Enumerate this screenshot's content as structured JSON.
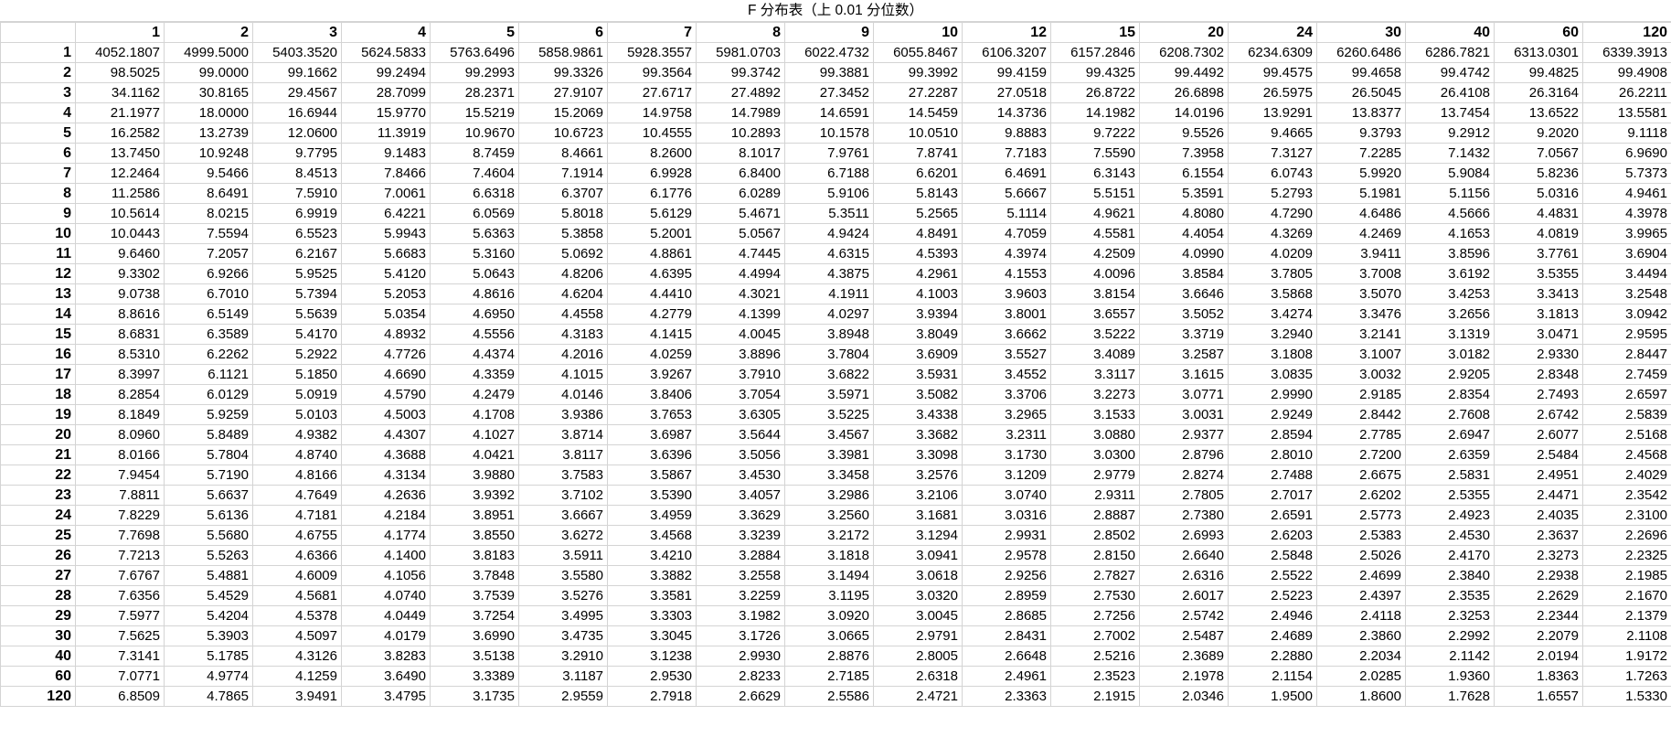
{
  "title": "F 分布表（上 0.01 分位数）",
  "columns": [
    "1",
    "2",
    "3",
    "4",
    "5",
    "6",
    "7",
    "8",
    "9",
    "10",
    "12",
    "15",
    "20",
    "24",
    "30",
    "40",
    "60",
    "120"
  ],
  "rows": [
    {
      "df": "1",
      "values": [
        "4052.1807",
        "4999.5000",
        "5403.3520",
        "5624.5833",
        "5763.6496",
        "5858.9861",
        "5928.3557",
        "5981.0703",
        "6022.4732",
        "6055.8467",
        "6106.3207",
        "6157.2846",
        "6208.7302",
        "6234.6309",
        "6260.6486",
        "6286.7821",
        "6313.0301",
        "6339.3913"
      ]
    },
    {
      "df": "2",
      "values": [
        "98.5025",
        "99.0000",
        "99.1662",
        "99.2494",
        "99.2993",
        "99.3326",
        "99.3564",
        "99.3742",
        "99.3881",
        "99.3992",
        "99.4159",
        "99.4325",
        "99.4492",
        "99.4575",
        "99.4658",
        "99.4742",
        "99.4825",
        "99.4908"
      ]
    },
    {
      "df": "3",
      "values": [
        "34.1162",
        "30.8165",
        "29.4567",
        "28.7099",
        "28.2371",
        "27.9107",
        "27.6717",
        "27.4892",
        "27.3452",
        "27.2287",
        "27.0518",
        "26.8722",
        "26.6898",
        "26.5975",
        "26.5045",
        "26.4108",
        "26.3164",
        "26.2211"
      ]
    },
    {
      "df": "4",
      "values": [
        "21.1977",
        "18.0000",
        "16.6944",
        "15.9770",
        "15.5219",
        "15.2069",
        "14.9758",
        "14.7989",
        "14.6591",
        "14.5459",
        "14.3736",
        "14.1982",
        "14.0196",
        "13.9291",
        "13.8377",
        "13.7454",
        "13.6522",
        "13.5581"
      ]
    },
    {
      "df": "5",
      "values": [
        "16.2582",
        "13.2739",
        "12.0600",
        "11.3919",
        "10.9670",
        "10.6723",
        "10.4555",
        "10.2893",
        "10.1578",
        "10.0510",
        "9.8883",
        "9.7222",
        "9.5526",
        "9.4665",
        "9.3793",
        "9.2912",
        "9.2020",
        "9.1118"
      ]
    },
    {
      "df": "6",
      "values": [
        "13.7450",
        "10.9248",
        "9.7795",
        "9.1483",
        "8.7459",
        "8.4661",
        "8.2600",
        "8.1017",
        "7.9761",
        "7.8741",
        "7.7183",
        "7.5590",
        "7.3958",
        "7.3127",
        "7.2285",
        "7.1432",
        "7.0567",
        "6.9690"
      ]
    },
    {
      "df": "7",
      "values": [
        "12.2464",
        "9.5466",
        "8.4513",
        "7.8466",
        "7.4604",
        "7.1914",
        "6.9928",
        "6.8400",
        "6.7188",
        "6.6201",
        "6.4691",
        "6.3143",
        "6.1554",
        "6.0743",
        "5.9920",
        "5.9084",
        "5.8236",
        "5.7373"
      ]
    },
    {
      "df": "8",
      "values": [
        "11.2586",
        "8.6491",
        "7.5910",
        "7.0061",
        "6.6318",
        "6.3707",
        "6.1776",
        "6.0289",
        "5.9106",
        "5.8143",
        "5.6667",
        "5.5151",
        "5.3591",
        "5.2793",
        "5.1981",
        "5.1156",
        "5.0316",
        "4.9461"
      ]
    },
    {
      "df": "9",
      "values": [
        "10.5614",
        "8.0215",
        "6.9919",
        "6.4221",
        "6.0569",
        "5.8018",
        "5.6129",
        "5.4671",
        "5.3511",
        "5.2565",
        "5.1114",
        "4.9621",
        "4.8080",
        "4.7290",
        "4.6486",
        "4.5666",
        "4.4831",
        "4.3978"
      ]
    },
    {
      "df": "10",
      "values": [
        "10.0443",
        "7.5594",
        "6.5523",
        "5.9943",
        "5.6363",
        "5.3858",
        "5.2001",
        "5.0567",
        "4.9424",
        "4.8491",
        "4.7059",
        "4.5581",
        "4.4054",
        "4.3269",
        "4.2469",
        "4.1653",
        "4.0819",
        "3.9965"
      ]
    },
    {
      "df": "11",
      "values": [
        "9.6460",
        "7.2057",
        "6.2167",
        "5.6683",
        "5.3160",
        "5.0692",
        "4.8861",
        "4.7445",
        "4.6315",
        "4.5393",
        "4.3974",
        "4.2509",
        "4.0990",
        "4.0209",
        "3.9411",
        "3.8596",
        "3.7761",
        "3.6904"
      ]
    },
    {
      "df": "12",
      "values": [
        "9.3302",
        "6.9266",
        "5.9525",
        "5.4120",
        "5.0643",
        "4.8206",
        "4.6395",
        "4.4994",
        "4.3875",
        "4.2961",
        "4.1553",
        "4.0096",
        "3.8584",
        "3.7805",
        "3.7008",
        "3.6192",
        "3.5355",
        "3.4494"
      ]
    },
    {
      "df": "13",
      "values": [
        "9.0738",
        "6.7010",
        "5.7394",
        "5.2053",
        "4.8616",
        "4.6204",
        "4.4410",
        "4.3021",
        "4.1911",
        "4.1003",
        "3.9603",
        "3.8154",
        "3.6646",
        "3.5868",
        "3.5070",
        "3.4253",
        "3.3413",
        "3.2548"
      ]
    },
    {
      "df": "14",
      "values": [
        "8.8616",
        "6.5149",
        "5.5639",
        "5.0354",
        "4.6950",
        "4.4558",
        "4.2779",
        "4.1399",
        "4.0297",
        "3.9394",
        "3.8001",
        "3.6557",
        "3.5052",
        "3.4274",
        "3.3476",
        "3.2656",
        "3.1813",
        "3.0942"
      ]
    },
    {
      "df": "15",
      "values": [
        "8.6831",
        "6.3589",
        "5.4170",
        "4.8932",
        "4.5556",
        "4.3183",
        "4.1415",
        "4.0045",
        "3.8948",
        "3.8049",
        "3.6662",
        "3.5222",
        "3.3719",
        "3.2940",
        "3.2141",
        "3.1319",
        "3.0471",
        "2.9595"
      ]
    },
    {
      "df": "16",
      "values": [
        "8.5310",
        "6.2262",
        "5.2922",
        "4.7726",
        "4.4374",
        "4.2016",
        "4.0259",
        "3.8896",
        "3.7804",
        "3.6909",
        "3.5527",
        "3.4089",
        "3.2587",
        "3.1808",
        "3.1007",
        "3.0182",
        "2.9330",
        "2.8447"
      ]
    },
    {
      "df": "17",
      "values": [
        "8.3997",
        "6.1121",
        "5.1850",
        "4.6690",
        "4.3359",
        "4.1015",
        "3.9267",
        "3.7910",
        "3.6822",
        "3.5931",
        "3.4552",
        "3.3117",
        "3.1615",
        "3.0835",
        "3.0032",
        "2.9205",
        "2.8348",
        "2.7459"
      ]
    },
    {
      "df": "18",
      "values": [
        "8.2854",
        "6.0129",
        "5.0919",
        "4.5790",
        "4.2479",
        "4.0146",
        "3.8406",
        "3.7054",
        "3.5971",
        "3.5082",
        "3.3706",
        "3.2273",
        "3.0771",
        "2.9990",
        "2.9185",
        "2.8354",
        "2.7493",
        "2.6597"
      ]
    },
    {
      "df": "19",
      "values": [
        "8.1849",
        "5.9259",
        "5.0103",
        "4.5003",
        "4.1708",
        "3.9386",
        "3.7653",
        "3.6305",
        "3.5225",
        "3.4338",
        "3.2965",
        "3.1533",
        "3.0031",
        "2.9249",
        "2.8442",
        "2.7608",
        "2.6742",
        "2.5839"
      ]
    },
    {
      "df": "20",
      "values": [
        "8.0960",
        "5.8489",
        "4.9382",
        "4.4307",
        "4.1027",
        "3.8714",
        "3.6987",
        "3.5644",
        "3.4567",
        "3.3682",
        "3.2311",
        "3.0880",
        "2.9377",
        "2.8594",
        "2.7785",
        "2.6947",
        "2.6077",
        "2.5168"
      ]
    },
    {
      "df": "21",
      "values": [
        "8.0166",
        "5.7804",
        "4.8740",
        "4.3688",
        "4.0421",
        "3.8117",
        "3.6396",
        "3.5056",
        "3.3981",
        "3.3098",
        "3.1730",
        "3.0300",
        "2.8796",
        "2.8010",
        "2.7200",
        "2.6359",
        "2.5484",
        "2.4568"
      ]
    },
    {
      "df": "22",
      "values": [
        "7.9454",
        "5.7190",
        "4.8166",
        "4.3134",
        "3.9880",
        "3.7583",
        "3.5867",
        "3.4530",
        "3.3458",
        "3.2576",
        "3.1209",
        "2.9779",
        "2.8274",
        "2.7488",
        "2.6675",
        "2.5831",
        "2.4951",
        "2.4029"
      ]
    },
    {
      "df": "23",
      "values": [
        "7.8811",
        "5.6637",
        "4.7649",
        "4.2636",
        "3.9392",
        "3.7102",
        "3.5390",
        "3.4057",
        "3.2986",
        "3.2106",
        "3.0740",
        "2.9311",
        "2.7805",
        "2.7017",
        "2.6202",
        "2.5355",
        "2.4471",
        "2.3542"
      ]
    },
    {
      "df": "24",
      "values": [
        "7.8229",
        "5.6136",
        "4.7181",
        "4.2184",
        "3.8951",
        "3.6667",
        "3.4959",
        "3.3629",
        "3.2560",
        "3.1681",
        "3.0316",
        "2.8887",
        "2.7380",
        "2.6591",
        "2.5773",
        "2.4923",
        "2.4035",
        "2.3100"
      ]
    },
    {
      "df": "25",
      "values": [
        "7.7698",
        "5.5680",
        "4.6755",
        "4.1774",
        "3.8550",
        "3.6272",
        "3.4568",
        "3.3239",
        "3.2172",
        "3.1294",
        "2.9931",
        "2.8502",
        "2.6993",
        "2.6203",
        "2.5383",
        "2.4530",
        "2.3637",
        "2.2696"
      ]
    },
    {
      "df": "26",
      "values": [
        "7.7213",
        "5.5263",
        "4.6366",
        "4.1400",
        "3.8183",
        "3.5911",
        "3.4210",
        "3.2884",
        "3.1818",
        "3.0941",
        "2.9578",
        "2.8150",
        "2.6640",
        "2.5848",
        "2.5026",
        "2.4170",
        "2.3273",
        "2.2325"
      ]
    },
    {
      "df": "27",
      "values": [
        "7.6767",
        "5.4881",
        "4.6009",
        "4.1056",
        "3.7848",
        "3.5580",
        "3.3882",
        "3.2558",
        "3.1494",
        "3.0618",
        "2.9256",
        "2.7827",
        "2.6316",
        "2.5522",
        "2.4699",
        "2.3840",
        "2.2938",
        "2.1985"
      ]
    },
    {
      "df": "28",
      "values": [
        "7.6356",
        "5.4529",
        "4.5681",
        "4.0740",
        "3.7539",
        "3.5276",
        "3.3581",
        "3.2259",
        "3.1195",
        "3.0320",
        "2.8959",
        "2.7530",
        "2.6017",
        "2.5223",
        "2.4397",
        "2.3535",
        "2.2629",
        "2.1670"
      ]
    },
    {
      "df": "29",
      "values": [
        "7.5977",
        "5.4204",
        "4.5378",
        "4.0449",
        "3.7254",
        "3.4995",
        "3.3303",
        "3.1982",
        "3.0920",
        "3.0045",
        "2.8685",
        "2.7256",
        "2.5742",
        "2.4946",
        "2.4118",
        "2.3253",
        "2.2344",
        "2.1379"
      ]
    },
    {
      "df": "30",
      "values": [
        "7.5625",
        "5.3903",
        "4.5097",
        "4.0179",
        "3.6990",
        "3.4735",
        "3.3045",
        "3.1726",
        "3.0665",
        "2.9791",
        "2.8431",
        "2.7002",
        "2.5487",
        "2.4689",
        "2.3860",
        "2.2992",
        "2.2079",
        "2.1108"
      ]
    },
    {
      "df": "40",
      "values": [
        "7.3141",
        "5.1785",
        "4.3126",
        "3.8283",
        "3.5138",
        "3.2910",
        "3.1238",
        "2.9930",
        "2.8876",
        "2.8005",
        "2.6648",
        "2.5216",
        "2.3689",
        "2.2880",
        "2.2034",
        "2.1142",
        "2.0194",
        "1.9172"
      ]
    },
    {
      "df": "60",
      "values": [
        "7.0771",
        "4.9774",
        "4.1259",
        "3.6490",
        "3.3389",
        "3.1187",
        "2.9530",
        "2.8233",
        "2.7185",
        "2.6318",
        "2.4961",
        "2.3523",
        "2.1978",
        "2.1154",
        "2.0285",
        "1.9360",
        "1.8363",
        "1.7263"
      ]
    },
    {
      "df": "120",
      "values": [
        "6.8509",
        "4.7865",
        "3.9491",
        "3.4795",
        "3.1735",
        "2.9559",
        "2.7918",
        "2.6629",
        "2.5586",
        "2.4721",
        "2.3363",
        "2.1915",
        "2.0346",
        "1.9500",
        "1.8600",
        "1.7628",
        "1.6557",
        "1.5330"
      ]
    }
  ]
}
